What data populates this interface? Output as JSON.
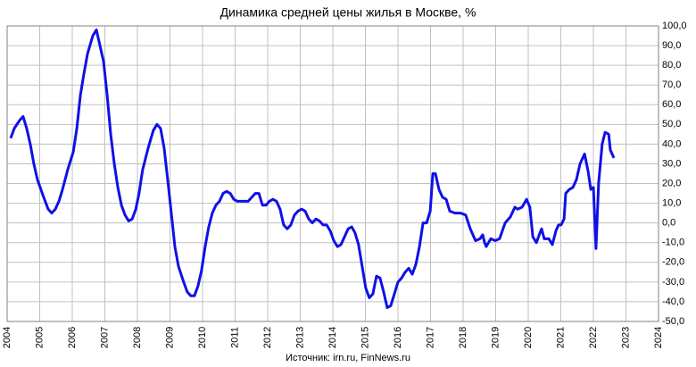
{
  "chart_data": {
    "type": "line",
    "title": "Динамика  средней цены жилья в Москве, %",
    "source": "Источник: irn.ru, FinNews.ru",
    "color": "#1010e8",
    "grid": true,
    "x": [
      2004.11,
      2004.22,
      2004.38,
      2004.49,
      2004.6,
      2004.71,
      2004.82,
      2004.93,
      2005.1,
      2005.26,
      2005.37,
      2005.48,
      2005.59,
      2005.7,
      2005.86,
      2006.03,
      2006.14,
      2006.25,
      2006.36,
      2006.47,
      2006.63,
      2006.74,
      2006.85,
      2006.96,
      2007.07,
      2007.18,
      2007.29,
      2007.4,
      2007.51,
      2007.62,
      2007.73,
      2007.84,
      2007.95,
      2008.05,
      2008.16,
      2008.33,
      2008.49,
      2008.6,
      2008.71,
      2008.82,
      2008.93,
      2009.04,
      2009.15,
      2009.26,
      2009.42,
      2009.53,
      2009.64,
      2009.75,
      2009.86,
      2009.97,
      2010.08,
      2010.19,
      2010.3,
      2010.41,
      2010.52,
      2010.63,
      2010.74,
      2010.85,
      2010.96,
      2011.07,
      2011.23,
      2011.4,
      2011.51,
      2011.62,
      2011.73,
      2011.84,
      2011.95,
      2012.05,
      2012.16,
      2012.27,
      2012.38,
      2012.49,
      2012.6,
      2012.71,
      2012.82,
      2012.93,
      2013.04,
      2013.15,
      2013.26,
      2013.37,
      2013.48,
      2013.59,
      2013.7,
      2013.81,
      2013.92,
      2014.03,
      2014.14,
      2014.25,
      2014.36,
      2014.47,
      2014.58,
      2014.68,
      2014.79,
      2014.9,
      2015.01,
      2015.12,
      2015.23,
      2015.34,
      2015.45,
      2015.56,
      2015.67,
      2015.78,
      2015.89,
      2016.0,
      2016.11,
      2016.22,
      2016.33,
      2016.44,
      2016.55,
      2016.66,
      2016.77,
      2016.88,
      2016.99,
      2017.07,
      2017.15,
      2017.26,
      2017.37,
      2017.48,
      2017.59,
      2017.75,
      2017.92,
      2018.08,
      2018.22,
      2018.38,
      2018.52,
      2018.6,
      2018.66,
      2018.71,
      2018.85,
      2018.99,
      2019.12,
      2019.29,
      2019.45,
      2019.59,
      2019.67,
      2019.81,
      2019.95,
      2020.05,
      2020.14,
      2020.25,
      2020.36,
      2020.41,
      2020.49,
      2020.63,
      2020.74,
      2020.85,
      2020.93,
      2021.01,
      2021.1,
      2021.15,
      2021.26,
      2021.37,
      2021.48,
      2021.59,
      2021.73,
      2021.84,
      2021.92,
      2022.0,
      2022.08,
      2022.16,
      2022.27,
      2022.36,
      2022.47,
      2022.52,
      2022.63
    ],
    "values": [
      43,
      48,
      52,
      54,
      48,
      40,
      30,
      22,
      14,
      7,
      5,
      7,
      11,
      17,
      27,
      36,
      48,
      65,
      76,
      86,
      95,
      98,
      90,
      82,
      65,
      45,
      30,
      18,
      9,
      4,
      1,
      2,
      7,
      15,
      27,
      38,
      47,
      50,
      48,
      38,
      22,
      5,
      -12,
      -22,
      -30,
      -35,
      -37,
      -37,
      -32,
      -24,
      -12,
      -2,
      5,
      9,
      11,
      15,
      16,
      15,
      12,
      11,
      11,
      11,
      13,
      15,
      15,
      9,
      9,
      11,
      12,
      11,
      7,
      -1,
      -3,
      -1,
      4,
      6,
      7,
      6,
      2,
      0,
      2,
      1,
      -1,
      -1,
      -4,
      -9,
      -12,
      -11,
      -7,
      -3,
      -2,
      -5,
      -11,
      -22,
      -33,
      -38,
      -36,
      -27,
      -28,
      -35,
      -43,
      -42,
      -36,
      -30,
      -28,
      -25,
      -23,
      -26,
      -21,
      -12,
      0,
      0,
      6,
      25,
      25,
      17,
      13,
      12,
      6,
      5,
      5,
      4,
      -3,
      -9,
      -8,
      -6,
      -10,
      -12,
      -8,
      -9,
      -8,
      0,
      3,
      8,
      7,
      8,
      12,
      8,
      -7,
      -10,
      -5,
      -3,
      -8,
      -8,
      -11,
      -4,
      -1,
      -1,
      2,
      15,
      17,
      18,
      22,
      30,
      35,
      26,
      17,
      18,
      -13,
      20,
      40,
      46,
      45,
      37,
      33
    ],
    "xlim": [
      2004,
      2024
    ],
    "xticks": [
      2004,
      2005,
      2006,
      2007,
      2008,
      2009,
      2010,
      2011,
      2012,
      2013,
      2014,
      2015,
      2016,
      2017,
      2018,
      2019,
      2020,
      2021,
      2022,
      2023,
      2024
    ],
    "ylim": [
      -50,
      100
    ],
    "yticks": [
      {
        "value": 100,
        "label": "100,0"
      },
      {
        "value": 90,
        "label": "90,0"
      },
      {
        "value": 80,
        "label": "80,0"
      },
      {
        "value": 70,
        "label": "70,0"
      },
      {
        "value": 60,
        "label": "60,0"
      },
      {
        "value": 50,
        "label": "50,0"
      },
      {
        "value": 40,
        "label": "40,0"
      },
      {
        "value": 30,
        "label": "30,0"
      },
      {
        "value": 20,
        "label": "20,0"
      },
      {
        "value": 10,
        "label": "10,0"
      },
      {
        "value": 0,
        "label": "0,0"
      },
      {
        "value": -10,
        "label": "-10,0"
      },
      {
        "value": -20,
        "label": "-20,0"
      },
      {
        "value": -30,
        "label": "-30,0"
      },
      {
        "value": -40,
        "label": "-40,0"
      },
      {
        "value": -50,
        "label": "-50,0"
      }
    ]
  }
}
